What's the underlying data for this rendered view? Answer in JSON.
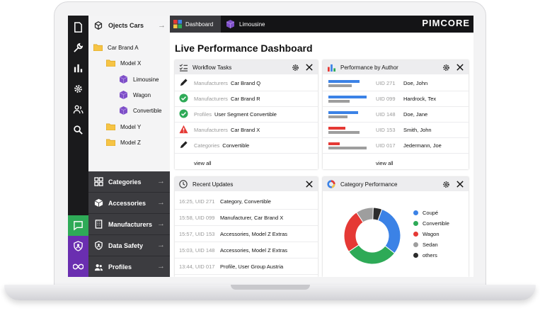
{
  "tree": {
    "header": "Ojects Cars",
    "items": [
      {
        "label": "Car Brand A",
        "type": "folder"
      },
      {
        "label": "Model X",
        "type": "folder"
      },
      {
        "label": "Limousine",
        "type": "object"
      },
      {
        "label": "Wagon",
        "type": "object"
      },
      {
        "label": "Convertible",
        "type": "object"
      },
      {
        "label": "Model Y",
        "type": "folder"
      },
      {
        "label": "Model Z",
        "type": "folder"
      }
    ]
  },
  "nav": [
    {
      "label": "Categories"
    },
    {
      "label": "Accessories"
    },
    {
      "label": "Manufacturers"
    },
    {
      "label": "Data Safety"
    },
    {
      "label": "Profiles"
    }
  ],
  "tabs": [
    {
      "label": "Dashboard"
    },
    {
      "label": "Limousine"
    }
  ],
  "logo": "PIMCORE",
  "page_title": "Live Performance Dashboard",
  "workflow": {
    "title": "Workflow Tasks",
    "rows": [
      {
        "prefix": "Manufacturers",
        "label": "Car Brand Q",
        "icon": "pencil-icon"
      },
      {
        "prefix": "Manufacturers",
        "label": "Car Brand R",
        "icon": "check-circle-icon"
      },
      {
        "prefix": "Profiles",
        "label": "User Segment Convertible",
        "icon": "check-circle-icon"
      },
      {
        "prefix": "Manufacturers",
        "label": "Car Brand X",
        "icon": "warning-icon"
      },
      {
        "prefix": "Categories",
        "label": "Convertible",
        "icon": "pencil-icon"
      }
    ],
    "view_all": "view all"
  },
  "author": {
    "title": "Performance by Author",
    "rows": [
      {
        "uid": "UID 271",
        "name": "Doe, John",
        "color": "#3b82e6",
        "value": 0.82,
        "ref": 0.62
      },
      {
        "uid": "UID 099",
        "name": "Hardrock, Tex",
        "color": "#3b82e6",
        "value": 1.0,
        "ref": 0.55
      },
      {
        "uid": "UID 148",
        "name": "Doe, Jane",
        "color": "#3b82e6",
        "value": 0.78,
        "ref": 0.5
      },
      {
        "uid": "UID 153",
        "name": "Smith, John",
        "color": "#e53935",
        "value": 0.45,
        "ref": 0.82
      },
      {
        "uid": "UID 017",
        "name": "Jedermann, Joe",
        "color": "#e53935",
        "value": 0.3,
        "ref": 1.0
      }
    ],
    "view_all": "view all"
  },
  "updates": {
    "title": "Recent Updates",
    "rows": [
      {
        "time": "16:25, UID 271",
        "label": "Category, Convertible"
      },
      {
        "time": "15:58, UID 099",
        "label": "Manufacturer, Car Brand X"
      },
      {
        "time": "15:57, UID 153",
        "label": "Accessories, Model Z Extras"
      },
      {
        "time": "15:03, UID 148",
        "label": "Accessories, Model Z Extras"
      },
      {
        "time": "13:44, UID 017",
        "label": "Profile, User Group Austria"
      }
    ]
  },
  "category": {
    "title": "Category Performance",
    "slices": [
      {
        "name": "Coupé",
        "value": 30,
        "color": "#3b82e6"
      },
      {
        "name": "Convertible",
        "value": 30,
        "color": "#2eaa57"
      },
      {
        "name": "Wagon",
        "value": 25,
        "color": "#e53935"
      },
      {
        "name": "Sedan",
        "value": 10,
        "color": "#9e9e9e"
      },
      {
        "name": "others",
        "value": 5,
        "color": "#2c2c2c"
      }
    ]
  },
  "colors": {
    "accent": "#6a2eb0",
    "chat": "#2eaa57",
    "rail": "#1a1a1c"
  }
}
